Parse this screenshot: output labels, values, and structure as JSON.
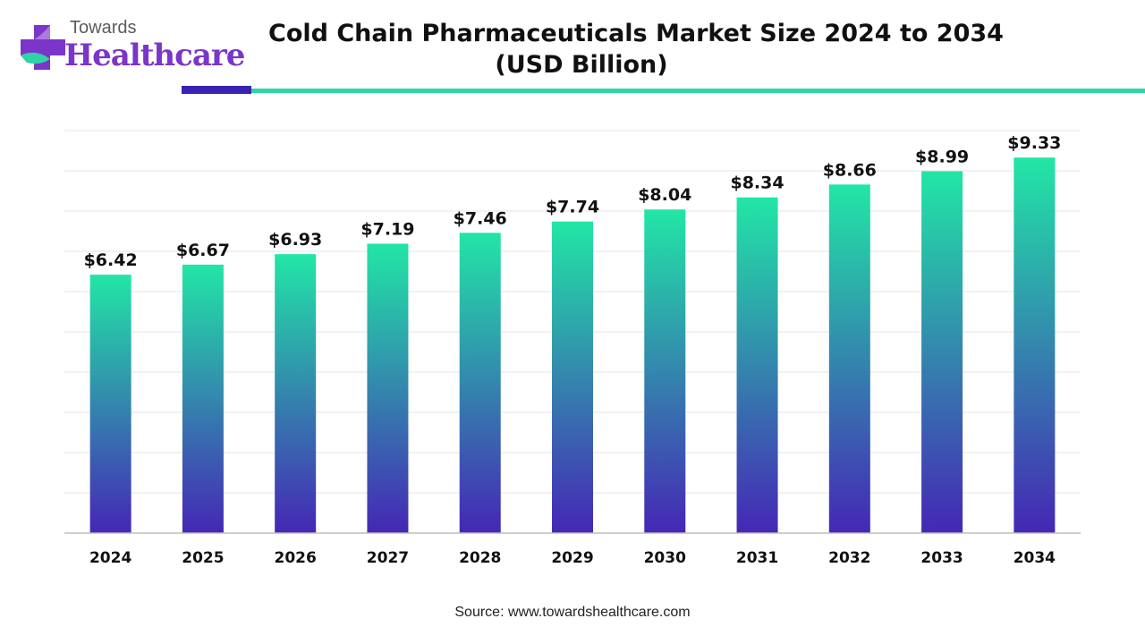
{
  "brand": {
    "name_top": "Towards",
    "name_bottom": "Healthcare",
    "colors": {
      "purple": "#7b35c8",
      "teal": "#2ed3a8",
      "indigo": "#3a22b5"
    }
  },
  "chart_data": {
    "type": "bar",
    "title": "Cold Chain Pharmaceuticals Market Size 2024 to 2034",
    "subtitle": "(USD Billion)",
    "categories": [
      "2024",
      "2025",
      "2026",
      "2027",
      "2028",
      "2029",
      "2030",
      "2031",
      "2032",
      "2033",
      "2034"
    ],
    "values": [
      6.42,
      6.67,
      6.93,
      7.19,
      7.46,
      7.74,
      8.04,
      8.34,
      8.66,
      8.99,
      9.33
    ],
    "value_labels": [
      "$6.42",
      "$6.67",
      "$6.93",
      "$7.19",
      "$7.46",
      "$7.74",
      "$8.04",
      "$8.34",
      "$8.66",
      "$8.99",
      "$9.33"
    ],
    "ylim": [
      0,
      10
    ],
    "grid": true,
    "legend": "none",
    "bar_gradient": {
      "top": "#22e6a6",
      "bottom": "#4527b5"
    }
  },
  "source": "Source: www.towardshealthcare.com"
}
